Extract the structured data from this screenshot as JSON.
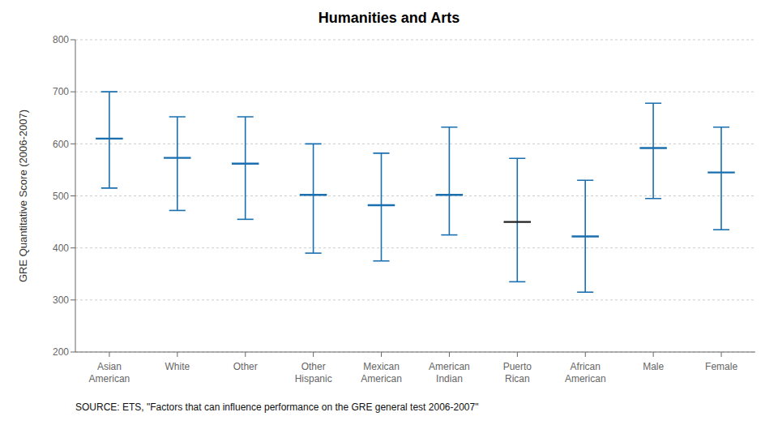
{
  "chart_data": {
    "type": "range",
    "title": "Humanities and Arts",
    "ylabel": "GRE Quantitative Score (2006-2007)",
    "annotations": [
      "SOURCE: ETS, \"Factors that can influence performance on the GRE general test 2006-2007\""
    ],
    "categories": [
      "Asian\nAmerican",
      "White",
      "Other",
      "Other\nHispanic",
      "Mexican\nAmerican",
      "American\nIndian",
      "Puerto\nRican",
      "African\nAmerican",
      "Male",
      "Female"
    ],
    "values": [
      610,
      573,
      562,
      502,
      482,
      502,
      450,
      422,
      592,
      545
    ],
    "lows": [
      515,
      472,
      455,
      390,
      375,
      425,
      335,
      315,
      495,
      435
    ],
    "highs": [
      700,
      652,
      652,
      600,
      582,
      632,
      572,
      530,
      678,
      632
    ],
    "color": "#1a6faf",
    "colors": [
      "#1a6faf",
      "#1a6faf",
      "#1a6faf",
      "#1a6faf",
      "#1a6faf",
      "#1a6faf",
      "#222222",
      "#1a6faf",
      "#1a6faf",
      "#1a6faf"
    ],
    "ylim": [
      200,
      800
    ],
    "yticks": [
      200,
      300,
      400,
      500,
      600,
      700,
      800
    ],
    "grid": true
  }
}
